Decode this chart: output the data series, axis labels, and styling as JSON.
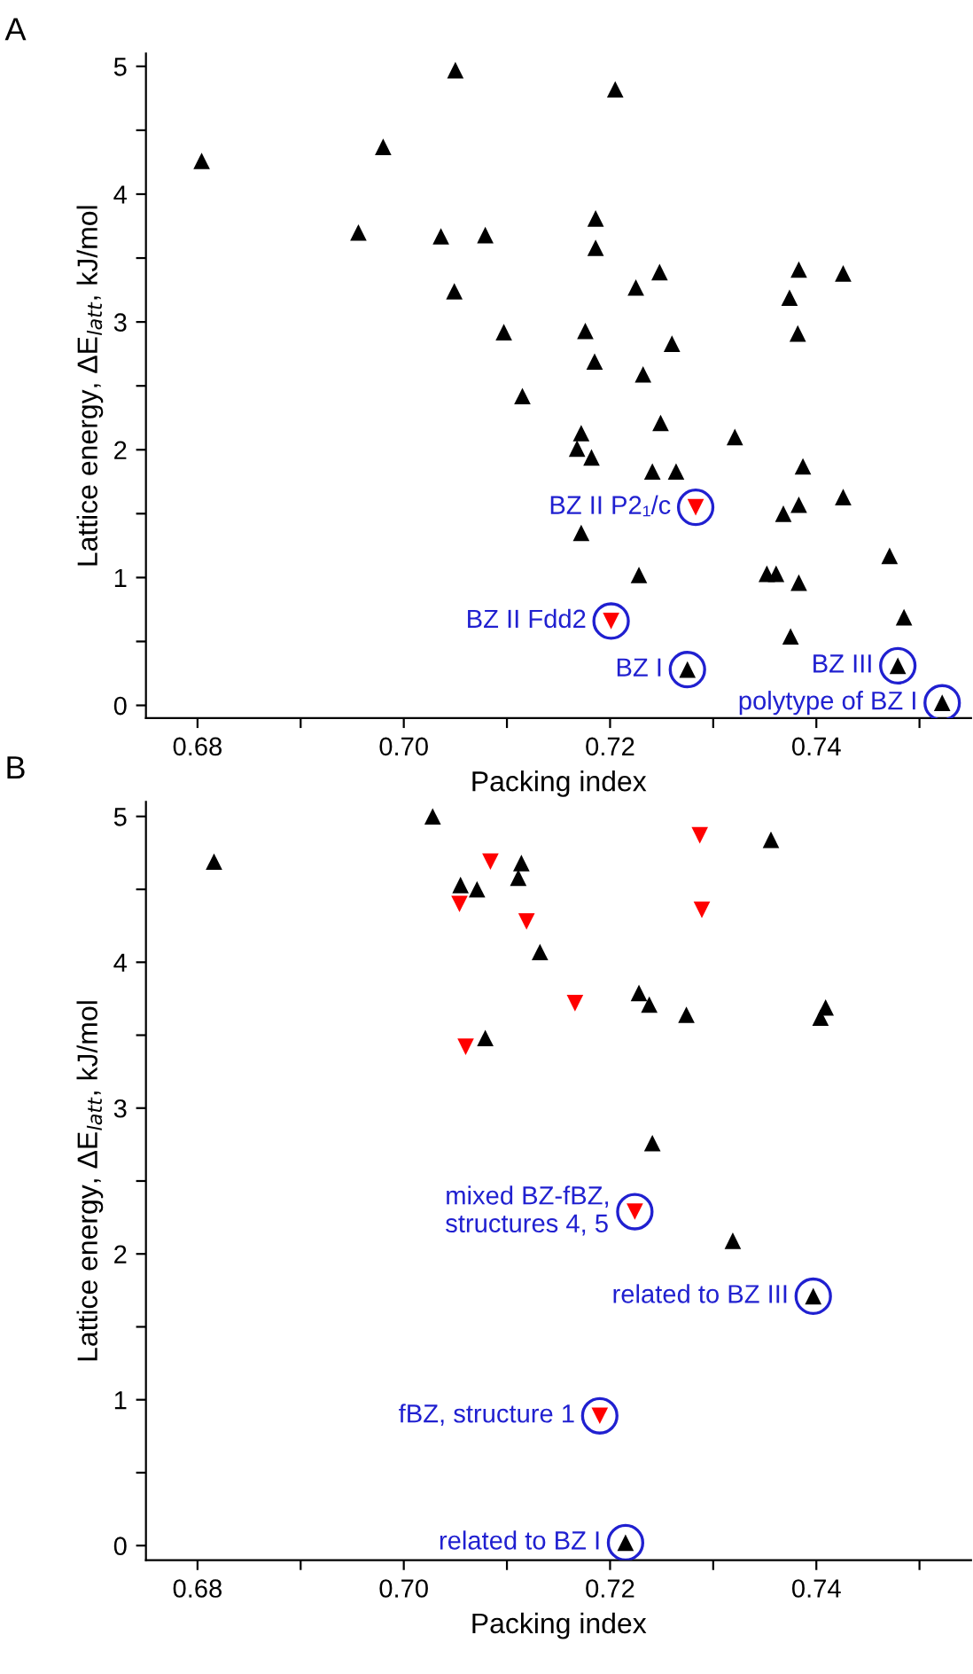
{
  "chart_data": [
    {
      "type": "scatter",
      "title": "A",
      "xlabel": "Packing index",
      "ylabel": "Lattice energy, ΔE$_{latt}$, kJ/mol",
      "xlim": [
        0.675,
        0.755
      ],
      "ylim": [
        -0.1,
        5.1
      ],
      "xticks": [
        {
          "value": 0.68,
          "label": "0.68"
        },
        {
          "value": 0.69,
          "label": null
        },
        {
          "value": 0.7,
          "label": "0.70"
        },
        {
          "value": 0.71,
          "label": null
        },
        {
          "value": 0.72,
          "label": "0.72"
        },
        {
          "value": 0.73,
          "label": null
        },
        {
          "value": 0.74,
          "label": "0.74"
        },
        {
          "value": 0.75,
          "label": null
        }
      ],
      "yticks": [
        0,
        {
          "value": 0.5,
          "label": null
        },
        1,
        {
          "value": 1.5,
          "label": null
        },
        2,
        {
          "value": 2.5,
          "label": null
        },
        3,
        {
          "value": 3.5,
          "label": null
        },
        4,
        {
          "value": 4.5,
          "label": null
        },
        5
      ],
      "grid": false,
      "legend": false,
      "series": [
        {
          "color": "#000000",
          "marker": "triangle",
          "x": [
            0.6804,
            0.6956,
            0.698,
            0.705,
            0.7036,
            0.7079,
            0.7049,
            0.7097,
            0.7115,
            0.7205,
            0.7186,
            0.7186,
            0.7248,
            0.7225,
            0.7383,
            0.7426,
            0.7374,
            0.7382,
            0.7176,
            0.726,
            0.7185,
            0.7232,
            0.7249,
            0.7321,
            0.7172,
            0.7168,
            0.7182,
            0.7241,
            0.7264,
            0.7387,
            0.7426,
            0.7383,
            0.7368,
            0.7172,
            0.7228,
            0.7352,
            0.7361,
            0.7383,
            0.7471,
            0.7485,
            0.7375,
            0.7275,
            0.7479,
            0.7522
          ],
          "values": [
            4.26,
            3.7,
            4.37,
            4.97,
            3.67,
            3.68,
            3.24,
            2.92,
            2.42,
            4.82,
            3.81,
            3.58,
            3.39,
            3.27,
            3.41,
            3.38,
            3.19,
            2.91,
            2.93,
            2.83,
            2.69,
            2.59,
            2.21,
            2.1,
            2.13,
            2.01,
            1.94,
            1.83,
            1.83,
            1.87,
            1.63,
            1.57,
            1.5,
            1.35,
            1.02,
            1.03,
            1.03,
            0.96,
            1.17,
            0.69,
            0.54,
            0.28,
            0.31,
            0.02
          ]
        },
        {
          "color": "#ff0000",
          "marker": "triangle_down",
          "x": [
            0.7283,
            0.7201
          ],
          "values": [
            1.55,
            0.66
          ]
        }
      ],
      "annotations": [
        {
          "text": "BZ II P2₁/c",
          "x": 0.7283,
          "y": 1.55
        },
        {
          "text": "BZ II Fdd2",
          "x": 0.7201,
          "y": 0.66
        },
        {
          "text": "BZ I",
          "x": 0.7275,
          "y": 0.28
        },
        {
          "text": "BZ III",
          "x": 0.7479,
          "y": 0.31
        },
        {
          "text": "polytype of BZ I",
          "x": 0.7522,
          "y": 0.02
        }
      ]
    },
    {
      "type": "scatter",
      "title": "B",
      "xlabel": "Packing index",
      "ylabel": "Lattice energy, ΔE$_{latt}$, kJ/mol",
      "xlim": [
        0.675,
        0.755
      ],
      "ylim": [
        -0.1,
        5.1
      ],
      "xticks": [
        {
          "value": 0.68,
          "label": "0.68"
        },
        {
          "value": 0.69,
          "label": null
        },
        {
          "value": 0.7,
          "label": "0.70"
        },
        {
          "value": 0.71,
          "label": null
        },
        {
          "value": 0.72,
          "label": "0.72"
        },
        {
          "value": 0.73,
          "label": null
        },
        {
          "value": 0.74,
          "label": "0.74"
        },
        {
          "value": 0.75,
          "label": null
        }
      ],
      "yticks": [
        0,
        {
          "value": 0.5,
          "label": null
        },
        1,
        {
          "value": 1.5,
          "label": null
        },
        2,
        {
          "value": 2.5,
          "label": null
        },
        3,
        {
          "value": 3.5,
          "label": null
        },
        4,
        {
          "value": 4.5,
          "label": null
        },
        5
      ],
      "grid": false,
      "legend": false,
      "series": [
        {
          "color": "#000000",
          "marker": "triangle",
          "x": [
            0.6816,
            0.7028,
            0.7055,
            0.7071,
            0.7114,
            0.7111,
            0.7132,
            0.7079,
            0.7356,
            0.7228,
            0.7238,
            0.7274,
            0.7409,
            0.7404,
            0.7241,
            0.7319,
            0.7397,
            0.7215
          ],
          "values": [
            4.69,
            5.0,
            4.53,
            4.5,
            4.68,
            4.58,
            4.07,
            3.48,
            4.84,
            3.79,
            3.71,
            3.64,
            3.69,
            3.62,
            2.76,
            2.09,
            1.71,
            0.02
          ]
        },
        {
          "color": "#ff0000",
          "marker": "triangle_down",
          "x": [
            0.7054,
            0.7084,
            0.7119,
            0.706,
            0.7287,
            0.7289,
            0.7166,
            0.7224,
            0.719
          ],
          "values": [
            4.4,
            4.69,
            4.28,
            3.42,
            4.87,
            4.36,
            3.72,
            2.29,
            0.89
          ]
        }
      ],
      "annotations": [
        {
          "text": "mixed BZ-fBZ,\nstructures 4, 5",
          "x": 0.7224,
          "y": 2.29
        },
        {
          "text": "related to BZ III",
          "x": 0.7397,
          "y": 1.71
        },
        {
          "text": "fBZ, structure 1",
          "x": 0.719,
          "y": 0.89
        },
        {
          "text": "related to BZ I",
          "x": 0.7215,
          "y": 0.02
        }
      ]
    }
  ]
}
